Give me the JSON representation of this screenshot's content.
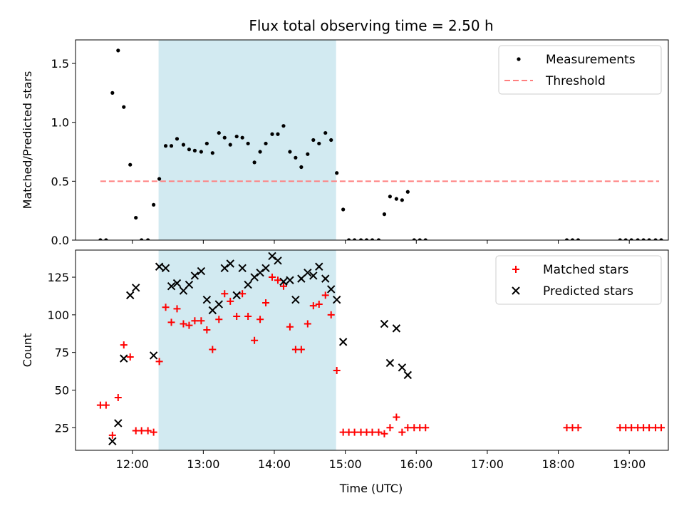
{
  "figure": {
    "title": "Flux total observing time = 2.50 h",
    "xlabel": "Time (UTC)",
    "x_ticks": [
      "12:00",
      "13:00",
      "14:00",
      "15:00",
      "16:00",
      "17:00",
      "18:00",
      "19:00"
    ]
  },
  "chart_data": [
    {
      "type": "scatter",
      "ylabel": "Matched/Predicted stars",
      "xlim_hours": [
        11.2,
        19.55
      ],
      "ylim": [
        0,
        1.7
      ],
      "y_ticks": [
        0.0,
        0.5,
        1.0,
        1.5
      ],
      "x_tick_hours": [
        12,
        13,
        14,
        15,
        16,
        17,
        18,
        19
      ],
      "shaded_interval_hours": [
        12.37,
        14.87
      ],
      "shade_color": "#add8e6",
      "legend": {
        "placement": "upper right",
        "entries": [
          "Measurements",
          "Threshold"
        ]
      },
      "threshold": {
        "name": "Threshold",
        "value": 0.5,
        "x_hours": [
          11.55,
          19.42
        ],
        "color": "#ff7f7f",
        "style": "dashed"
      },
      "series": [
        {
          "name": "Measurements",
          "marker": "dot",
          "color": "#000000",
          "points": [
            [
              11.55,
              0
            ],
            [
              11.63,
              0
            ],
            [
              11.72,
              1.25
            ],
            [
              11.8,
              1.61
            ],
            [
              11.88,
              1.13
            ],
            [
              11.97,
              0.64
            ],
            [
              12.05,
              0.19
            ],
            [
              12.13,
              0
            ],
            [
              12.22,
              0
            ],
            [
              12.3,
              0.3
            ],
            [
              12.38,
              0.52
            ],
            [
              12.47,
              0.8
            ],
            [
              12.55,
              0.8
            ],
            [
              12.63,
              0.86
            ],
            [
              12.72,
              0.81
            ],
            [
              12.8,
              0.77
            ],
            [
              12.88,
              0.76
            ],
            [
              12.97,
              0.75
            ],
            [
              13.05,
              0.82
            ],
            [
              13.13,
              0.74
            ],
            [
              13.22,
              0.91
            ],
            [
              13.3,
              0.87
            ],
            [
              13.38,
              0.81
            ],
            [
              13.47,
              0.88
            ],
            [
              13.55,
              0.87
            ],
            [
              13.63,
              0.82
            ],
            [
              13.72,
              0.66
            ],
            [
              13.8,
              0.75
            ],
            [
              13.88,
              0.82
            ],
            [
              13.97,
              0.9
            ],
            [
              14.05,
              0.9
            ],
            [
              14.13,
              0.97
            ],
            [
              14.22,
              0.75
            ],
            [
              14.3,
              0.7
            ],
            [
              14.38,
              0.62
            ],
            [
              14.47,
              0.73
            ],
            [
              14.55,
              0.85
            ],
            [
              14.63,
              0.82
            ],
            [
              14.72,
              0.91
            ],
            [
              14.8,
              0.85
            ],
            [
              14.88,
              0.57
            ],
            [
              14.97,
              0.26
            ],
            [
              15.05,
              0
            ],
            [
              15.13,
              0
            ],
            [
              15.22,
              0
            ],
            [
              15.3,
              0
            ],
            [
              15.38,
              0
            ],
            [
              15.47,
              0
            ],
            [
              15.55,
              0.22
            ],
            [
              15.63,
              0.37
            ],
            [
              15.72,
              0.35
            ],
            [
              15.8,
              0.34
            ],
            [
              15.88,
              0.41
            ],
            [
              15.97,
              0
            ],
            [
              16.05,
              0
            ],
            [
              16.13,
              0
            ],
            [
              18.12,
              0
            ],
            [
              18.2,
              0
            ],
            [
              18.28,
              0
            ],
            [
              18.87,
              0
            ],
            [
              18.95,
              0
            ],
            [
              19.03,
              0
            ],
            [
              19.12,
              0
            ],
            [
              19.2,
              0
            ],
            [
              19.28,
              0
            ],
            [
              19.37,
              0
            ],
            [
              19.45,
              0
            ]
          ]
        }
      ]
    },
    {
      "type": "scatter",
      "ylabel": "Count",
      "xlim_hours": [
        11.2,
        19.55
      ],
      "ylim": [
        10,
        143
      ],
      "y_ticks": [
        25,
        50,
        75,
        100,
        125
      ],
      "x_tick_hours": [
        12,
        13,
        14,
        15,
        16,
        17,
        18,
        19
      ],
      "shaded_interval_hours": [
        12.37,
        14.87
      ],
      "shade_color": "#add8e6",
      "legend": {
        "placement": "upper right",
        "entries": [
          "Matched stars",
          "Predicted stars"
        ]
      },
      "series": [
        {
          "name": "Matched stars",
          "marker": "plus",
          "color": "#ff0000",
          "points": [
            [
              11.55,
              40
            ],
            [
              11.63,
              40
            ],
            [
              11.72,
              20
            ],
            [
              11.8,
              45
            ],
            [
              11.88,
              80
            ],
            [
              11.97,
              72
            ],
            [
              12.05,
              23
            ],
            [
              12.13,
              23
            ],
            [
              12.22,
              23
            ],
            [
              12.3,
              22
            ],
            [
              12.38,
              69
            ],
            [
              12.47,
              105
            ],
            [
              12.55,
              95
            ],
            [
              12.63,
              104
            ],
            [
              12.72,
              94
            ],
            [
              12.8,
              93
            ],
            [
              12.88,
              96
            ],
            [
              12.97,
              96
            ],
            [
              13.05,
              90
            ],
            [
              13.13,
              77
            ],
            [
              13.22,
              97
            ],
            [
              13.3,
              114
            ],
            [
              13.38,
              109
            ],
            [
              13.47,
              99
            ],
            [
              13.55,
              114
            ],
            [
              13.63,
              99
            ],
            [
              13.72,
              83
            ],
            [
              13.8,
              97
            ],
            [
              13.88,
              108
            ],
            [
              13.97,
              125
            ],
            [
              14.05,
              123
            ],
            [
              14.13,
              119
            ],
            [
              14.22,
              92
            ],
            [
              14.3,
              77
            ],
            [
              14.38,
              77
            ],
            [
              14.47,
              94
            ],
            [
              14.55,
              106
            ],
            [
              14.63,
              107
            ],
            [
              14.72,
              113
            ],
            [
              14.8,
              100
            ],
            [
              14.88,
              63
            ],
            [
              14.97,
              22
            ],
            [
              15.05,
              22
            ],
            [
              15.13,
              22
            ],
            [
              15.22,
              22
            ],
            [
              15.3,
              22
            ],
            [
              15.38,
              22
            ],
            [
              15.47,
              22
            ],
            [
              15.55,
              21
            ],
            [
              15.63,
              25
            ],
            [
              15.72,
              32
            ],
            [
              15.8,
              22
            ],
            [
              15.88,
              25
            ],
            [
              15.97,
              25
            ],
            [
              16.05,
              25
            ],
            [
              16.13,
              25
            ],
            [
              18.12,
              25
            ],
            [
              18.2,
              25
            ],
            [
              18.28,
              25
            ],
            [
              18.87,
              25
            ],
            [
              18.95,
              25
            ],
            [
              19.03,
              25
            ],
            [
              19.12,
              25
            ],
            [
              19.2,
              25
            ],
            [
              19.28,
              25
            ],
            [
              19.37,
              25
            ],
            [
              19.45,
              25
            ]
          ]
        },
        {
          "name": "Predicted stars",
          "marker": "x",
          "color": "#000000",
          "points": [
            [
              11.72,
              16
            ],
            [
              11.8,
              28
            ],
            [
              11.88,
              71
            ],
            [
              11.97,
              113
            ],
            [
              12.05,
              118
            ],
            [
              12.3,
              73
            ],
            [
              12.38,
              132
            ],
            [
              12.47,
              131
            ],
            [
              12.55,
              119
            ],
            [
              12.63,
              121
            ],
            [
              12.72,
              116
            ],
            [
              12.8,
              120
            ],
            [
              12.88,
              126
            ],
            [
              12.97,
              129
            ],
            [
              13.05,
              110
            ],
            [
              13.13,
              103
            ],
            [
              13.22,
              107
            ],
            [
              13.3,
              131
            ],
            [
              13.38,
              134
            ],
            [
              13.47,
              113
            ],
            [
              13.55,
              131
            ],
            [
              13.63,
              120
            ],
            [
              13.72,
              125
            ],
            [
              13.8,
              128
            ],
            [
              13.88,
              131
            ],
            [
              13.97,
              139
            ],
            [
              14.05,
              136
            ],
            [
              14.13,
              122
            ],
            [
              14.22,
              123
            ],
            [
              14.3,
              110
            ],
            [
              14.38,
              124
            ],
            [
              14.47,
              128
            ],
            [
              14.55,
              126
            ],
            [
              14.63,
              132
            ],
            [
              14.72,
              124
            ],
            [
              14.8,
              117
            ],
            [
              14.88,
              110
            ],
            [
              14.97,
              82
            ],
            [
              15.55,
              94
            ],
            [
              15.63,
              68
            ],
            [
              15.72,
              91
            ],
            [
              15.8,
              65
            ],
            [
              15.88,
              60
            ]
          ]
        }
      ]
    }
  ]
}
